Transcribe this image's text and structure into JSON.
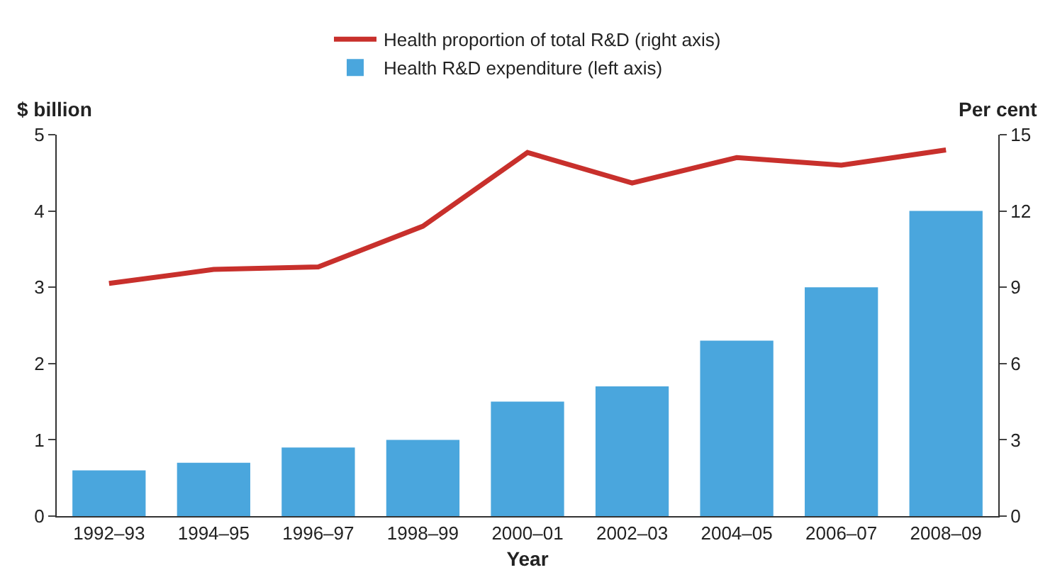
{
  "chart_data": {
    "type": "bar",
    "xlabel": "Year",
    "ylabel": "$ billion",
    "y2label": "Per cent",
    "categories": [
      "1992–93",
      "1994–95",
      "1996–97",
      "1998–99",
      "2000–01",
      "2002–03",
      "2004–05",
      "2006–07",
      "2008–09"
    ],
    "series": [
      {
        "name": "Health proportion of total R&D (right axis)",
        "type": "line",
        "axis": "y2",
        "color": "#c8302c",
        "values": [
          9.15,
          9.7,
          9.8,
          11.4,
          14.3,
          13.1,
          14.1,
          13.8,
          14.4
        ]
      },
      {
        "name": "Health R&D expenditure (left axis)",
        "color": "#4aa6dd",
        "values": [
          0.6,
          0.7,
          0.9,
          1.0,
          1.5,
          1.7,
          2.3,
          3.0,
          4.0
        ]
      }
    ],
    "ylim": [
      0,
      5
    ],
    "yticks": [
      0,
      1,
      2,
      3,
      4,
      5
    ],
    "y2lim": [
      0,
      15
    ],
    "y2ticks": [
      0,
      3,
      6,
      9,
      12,
      15
    ],
    "grid": false,
    "legend": "top",
    "marker": "none",
    "line_style": "solid"
  }
}
